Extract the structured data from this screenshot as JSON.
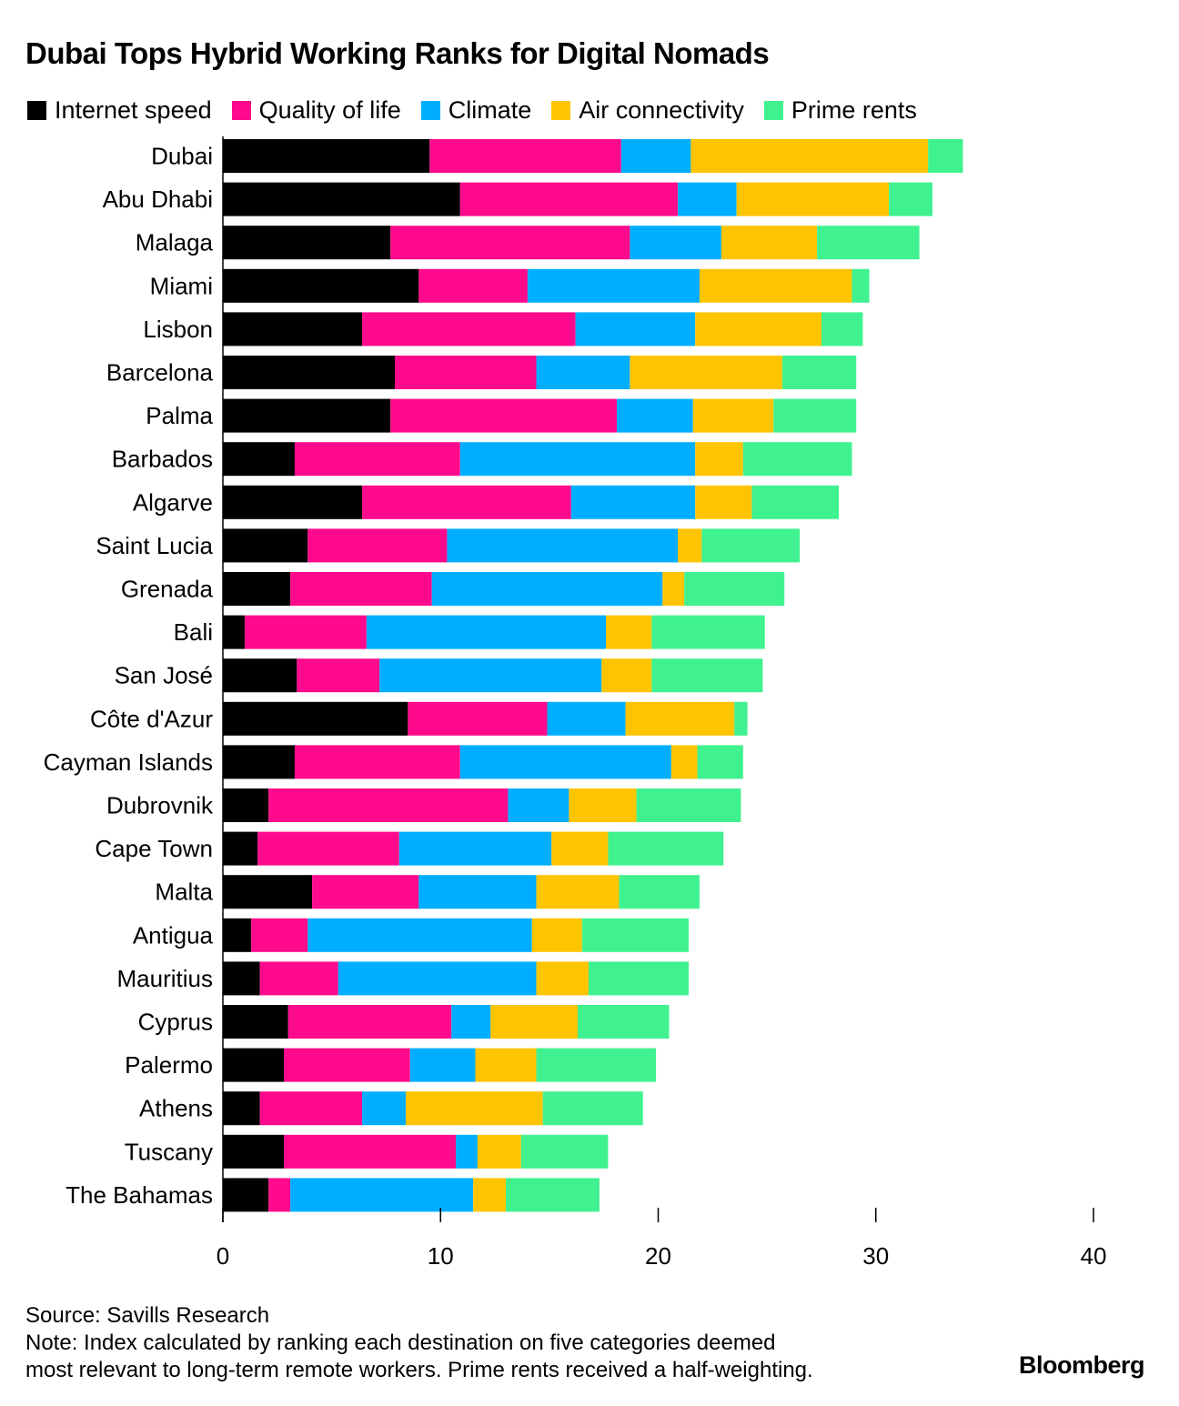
{
  "chart_data": {
    "type": "bar",
    "orientation": "horizontal",
    "stacked": true,
    "title": "Dubai Tops Hybrid Working Ranks for Digital Nomads",
    "xlabel": "",
    "ylabel": "",
    "xlim": [
      0,
      40
    ],
    "x_ticks": [
      "0",
      "10",
      "20",
      "30",
      "40"
    ],
    "grid": false,
    "legend_position": "top",
    "categories": [
      "Dubai",
      "Abu Dhabi",
      "Malaga",
      "Miami",
      "Lisbon",
      "Barcelona",
      "Palma",
      "Barbados",
      "Algarve",
      "Saint Lucia",
      "Grenada",
      "Bali",
      "San José",
      "Côte d'Azur",
      "Cayman Islands",
      "Dubrovnik",
      "Cape Town",
      "Malta",
      "Antigua",
      "Mauritius",
      "Cyprus",
      "Palermo",
      "Athens",
      "Tuscany",
      "The Bahamas"
    ],
    "series": [
      {
        "name": "Internet speed",
        "color": "#000000",
        "values": [
          9.5,
          10.9,
          7.7,
          9.0,
          6.4,
          7.9,
          7.7,
          3.3,
          6.4,
          3.9,
          3.1,
          1.0,
          3.4,
          8.5,
          3.3,
          2.1,
          1.6,
          4.1,
          1.3,
          1.7,
          3.0,
          2.8,
          1.7,
          2.8,
          2.1
        ]
      },
      {
        "name": "Quality of life",
        "color": "#ff0a8c",
        "values": [
          8.8,
          10.0,
          11.0,
          5.0,
          9.8,
          6.5,
          10.4,
          7.6,
          9.6,
          6.4,
          6.5,
          5.6,
          3.8,
          6.4,
          7.6,
          11.0,
          6.5,
          4.9,
          2.6,
          3.6,
          7.5,
          5.8,
          4.7,
          7.9,
          1.0
        ]
      },
      {
        "name": "Climate",
        "color": "#00aeff",
        "values": [
          3.2,
          2.7,
          4.2,
          7.9,
          5.5,
          4.3,
          3.5,
          10.8,
          5.7,
          10.6,
          10.6,
          11.0,
          10.2,
          3.6,
          9.7,
          2.8,
          7.0,
          5.4,
          10.3,
          9.1,
          1.8,
          3.0,
          2.0,
          1.0,
          8.4
        ]
      },
      {
        "name": "Air connectivity",
        "color": "#ffc400",
        "values": [
          10.9,
          7.0,
          4.4,
          7.0,
          5.8,
          7.0,
          3.7,
          2.2,
          2.6,
          1.1,
          1.0,
          2.1,
          2.3,
          5.0,
          1.2,
          3.1,
          2.6,
          3.8,
          2.3,
          2.4,
          4.0,
          2.8,
          6.3,
          2.0,
          1.5
        ]
      },
      {
        "name": "Prime rents",
        "color": "#3ff28f",
        "values": [
          1.6,
          2.0,
          4.7,
          0.8,
          1.9,
          3.4,
          3.8,
          5.0,
          4.0,
          4.5,
          4.6,
          5.2,
          5.1,
          0.6,
          2.1,
          4.8,
          5.3,
          3.7,
          4.9,
          4.6,
          4.2,
          5.5,
          4.6,
          4.0,
          4.3
        ]
      }
    ]
  },
  "footer": {
    "source": "Source: Savills Research",
    "note_line1": "Note: Index calculated by ranking each destination on five categories deemed",
    "note_line2": "most relevant to long-term remote workers. Prime rents received a half-weighting."
  },
  "brand": "Bloomberg"
}
